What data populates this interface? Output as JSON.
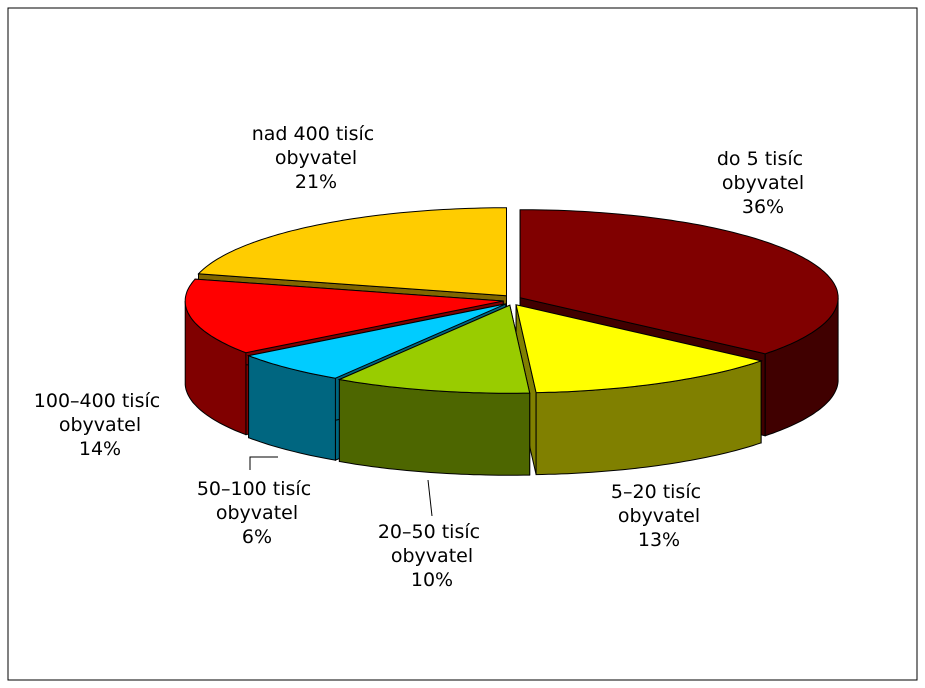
{
  "chart_data": {
    "type": "pie",
    "categories": [
      "do 5 tisíc obyvatel",
      "5–20 tisíc obyvatel",
      "20–50 tisíc obyvatel",
      "50–100 tisíc obyvatel",
      "100–400 tisíc obyvatel",
      "nad 400 tisíc obyvatel"
    ],
    "values": [
      36,
      13,
      10,
      6,
      14,
      21
    ],
    "value_labels": [
      "36%",
      "13%",
      "10%",
      "6%",
      "14%",
      "21%"
    ],
    "colors": [
      "#800000",
      "#ffff00",
      "#99cc00",
      "#00ccff",
      "#ff0000",
      "#ffcc00"
    ]
  }
}
